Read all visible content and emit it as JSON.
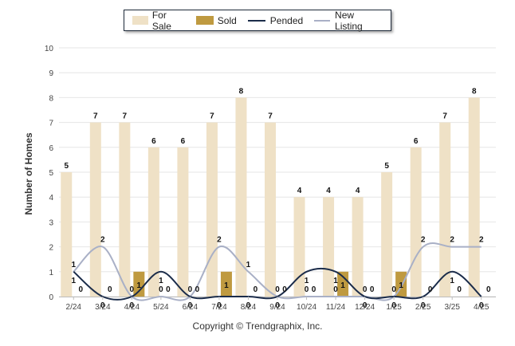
{
  "chart_data": {
    "type": "bar",
    "ylabel": "Number of Homes",
    "ylim": [
      0,
      10
    ],
    "yticks": [
      "0",
      "1",
      "2",
      "3",
      "4",
      "5",
      "6",
      "7",
      "8",
      "9",
      "10"
    ],
    "categories": [
      "2/24",
      "3/24",
      "4/24",
      "5/24",
      "6/24",
      "7/24",
      "8/24",
      "9/24",
      "10/24",
      "11/24",
      "12/24",
      "1/25",
      "2/25",
      "3/25",
      "4/25"
    ],
    "series": [
      {
        "name": "For Sale",
        "kind": "bar",
        "color": "#efe1c6",
        "values": [
          5,
          7,
          7,
          6,
          6,
          7,
          8,
          7,
          4,
          4,
          4,
          5,
          6,
          7,
          8
        ]
      },
      {
        "name": "Sold",
        "kind": "bar",
        "color": "#bf9a40",
        "values": [
          0,
          0,
          1,
          0,
          0,
          1,
          0,
          0,
          0,
          1,
          0,
          1,
          0,
          0,
          0
        ]
      },
      {
        "name": "Pended",
        "kind": "line",
        "color": "#1b2c4a",
        "values": [
          1,
          0,
          0,
          1,
          0,
          0,
          0,
          0,
          1,
          1,
          0,
          0,
          0,
          1,
          0
        ]
      },
      {
        "name": "New Listing",
        "kind": "line",
        "color": "#a9b0c6",
        "values": [
          1,
          2,
          0,
          0,
          0,
          2,
          1,
          0,
          0,
          0,
          0,
          0,
          2,
          2,
          2
        ]
      }
    ],
    "grid": true,
    "legend_position": "top"
  },
  "copyright": "Copyright © Trendgraphix, Inc."
}
